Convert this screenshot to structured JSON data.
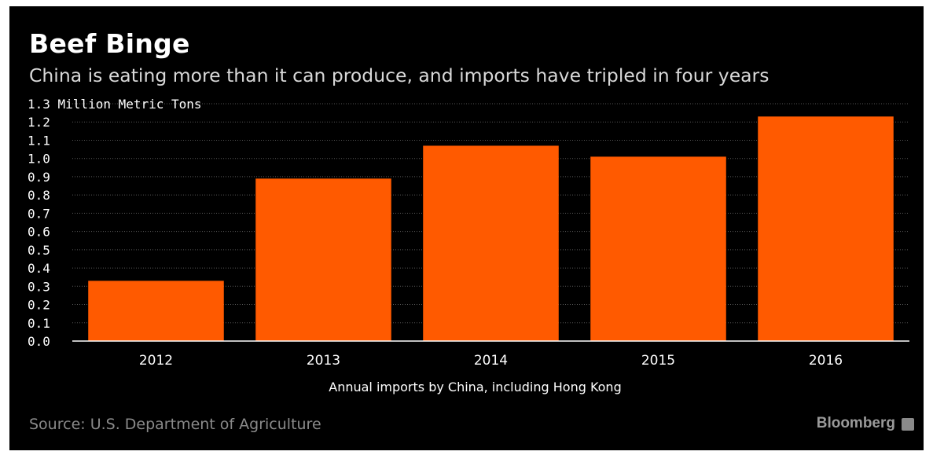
{
  "title": "Beef Binge",
  "subtitle": "China is eating more than it can produce, and imports have tripled in four years",
  "source": "Source: U.S. Department of Agriculture",
  "brand": "Bloomberg",
  "colors": {
    "bar": "#ff5a00",
    "background": "#000000",
    "grid": "#555555",
    "text": "#ffffff"
  },
  "chart_data": {
    "type": "bar",
    "categories": [
      "2012",
      "2013",
      "2014",
      "2015",
      "2016"
    ],
    "values": [
      0.33,
      0.89,
      1.07,
      1.01,
      1.23
    ],
    "title": "Beef Binge",
    "subtitle": "China is eating more than it can produce, and imports have tripled in four years",
    "ylabel": "Million Metric Tons",
    "xlabel": "Annual imports by China, including Hong Kong",
    "ylim": [
      0,
      1.3
    ],
    "yticks": [
      0.0,
      0.1,
      0.2,
      0.3,
      0.4,
      0.5,
      0.6,
      0.7,
      0.8,
      0.9,
      1.0,
      1.1,
      1.2,
      1.3
    ],
    "grid": true,
    "legend": "none"
  }
}
